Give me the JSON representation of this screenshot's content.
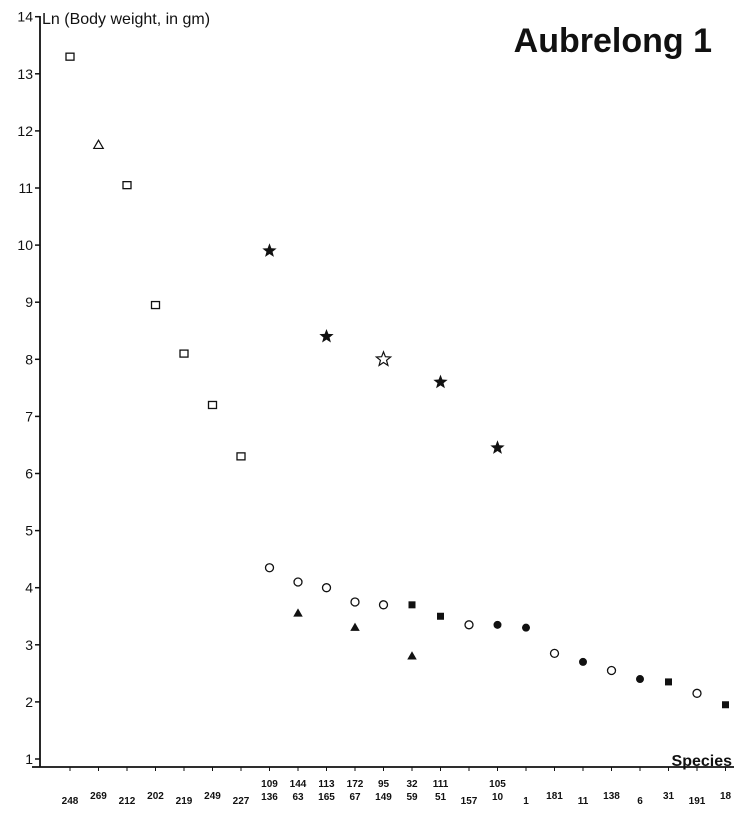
{
  "chart_data": {
    "type": "scatter",
    "title": "Aubrelong 1",
    "ylabel": "Ln (Body  weight,  in  gm)",
    "xlabel": "Species",
    "ylim": [
      1,
      14
    ],
    "yticks": [
      1,
      2,
      3,
      4,
      5,
      6,
      7,
      8,
      9,
      10,
      11,
      12,
      13,
      14
    ],
    "grid": false,
    "legend": "none",
    "x_categories": [
      {
        "top": "248",
        "bottom": ""
      },
      {
        "top": "269",
        "bottom": ""
      },
      {
        "top": "212",
        "bottom": ""
      },
      {
        "top": "202",
        "bottom": ""
      },
      {
        "top": "219",
        "bottom": ""
      },
      {
        "top": "249",
        "bottom": ""
      },
      {
        "top": "227",
        "bottom": ""
      },
      {
        "top": "109",
        "bottom": "136"
      },
      {
        "top": "144",
        "bottom": "63"
      },
      {
        "top": "113",
        "bottom": "165"
      },
      {
        "top": "172",
        "bottom": "67"
      },
      {
        "top": "95",
        "bottom": "149"
      },
      {
        "top": "32",
        "bottom": "59"
      },
      {
        "top": "111",
        "bottom": "51"
      },
      {
        "top": "157",
        "bottom": ""
      },
      {
        "top": "105",
        "bottom": "10"
      },
      {
        "top": "1",
        "bottom": ""
      },
      {
        "top": "181",
        "bottom": ""
      },
      {
        "top": "11",
        "bottom": ""
      },
      {
        "top": "138",
        "bottom": ""
      },
      {
        "top": "6",
        "bottom": ""
      },
      {
        "top": "31",
        "bottom": ""
      },
      {
        "top": "191",
        "bottom": ""
      },
      {
        "top": "18",
        "bottom": ""
      }
    ],
    "series": [
      {
        "marker": "open-square",
        "points": [
          [
            0,
            13.3
          ],
          [
            2,
            11.05
          ],
          [
            3,
            8.95
          ],
          [
            4,
            8.1
          ],
          [
            5,
            7.2
          ],
          [
            6,
            6.3
          ]
        ]
      },
      {
        "marker": "open-triangle",
        "points": [
          [
            1,
            11.75
          ]
        ]
      },
      {
        "marker": "filled-star",
        "points": [
          [
            7,
            9.9
          ],
          [
            9,
            8.4
          ],
          [
            13,
            7.6
          ],
          [
            15,
            6.45
          ]
        ]
      },
      {
        "marker": "open-star",
        "points": [
          [
            11,
            8.0
          ]
        ]
      },
      {
        "marker": "open-circle",
        "points": [
          [
            7,
            4.35
          ],
          [
            8,
            4.1
          ],
          [
            9,
            4.0
          ],
          [
            10,
            3.75
          ],
          [
            11,
            3.7
          ],
          [
            14,
            3.35
          ],
          [
            17,
            2.85
          ],
          [
            19,
            2.55
          ],
          [
            22,
            2.15
          ]
        ]
      },
      {
        "marker": "filled-triangle",
        "points": [
          [
            8,
            3.55
          ],
          [
            10,
            3.3
          ],
          [
            12,
            2.8
          ]
        ]
      },
      {
        "marker": "filled-square",
        "points": [
          [
            12,
            3.7
          ],
          [
            13,
            3.5
          ],
          [
            21,
            2.35
          ],
          [
            23,
            1.95
          ]
        ]
      },
      {
        "marker": "filled-circle",
        "points": [
          [
            15,
            3.35
          ],
          [
            16,
            3.3
          ],
          [
            18,
            2.7
          ],
          [
            20,
            2.4
          ]
        ]
      }
    ]
  }
}
